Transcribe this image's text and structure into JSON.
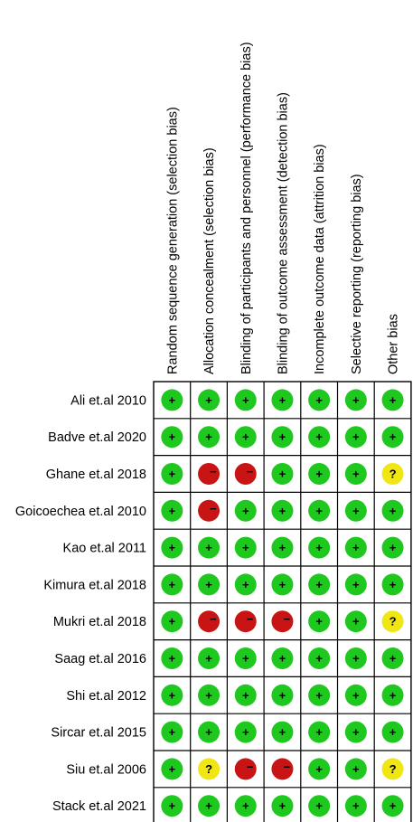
{
  "domains": [
    "Random sequence generation (selection bias)",
    "Allocation concealment (selection bias)",
    "Blinding of participants and personnel (performance bias)",
    "Blinding of outcome assessment (detection bias)",
    "Incomplete outcome data (attrition bias)",
    "Selective reporting (reporting bias)",
    "Other bias"
  ],
  "studies": [
    {
      "name": "Ali et.al 2010",
      "ratings": [
        "low",
        "low",
        "low",
        "low",
        "low",
        "low",
        "low"
      ]
    },
    {
      "name": "Badve et.al 2020",
      "ratings": [
        "low",
        "low",
        "low",
        "low",
        "low",
        "low",
        "low"
      ]
    },
    {
      "name": "Ghane et.al 2018",
      "ratings": [
        "low",
        "high",
        "high",
        "low",
        "low",
        "low",
        "unclear"
      ]
    },
    {
      "name": "Goicoechea et.al 2010",
      "ratings": [
        "low",
        "high",
        "low",
        "low",
        "low",
        "low",
        "low"
      ]
    },
    {
      "name": "Kao et.al 2011",
      "ratings": [
        "low",
        "low",
        "low",
        "low",
        "low",
        "low",
        "low"
      ]
    },
    {
      "name": "Kimura et.al 2018",
      "ratings": [
        "low",
        "low",
        "low",
        "low",
        "low",
        "low",
        "low"
      ]
    },
    {
      "name": "Mukri et.al 2018",
      "ratings": [
        "low",
        "high",
        "high",
        "high",
        "low",
        "low",
        "unclear"
      ]
    },
    {
      "name": "Saag et.al 2016",
      "ratings": [
        "low",
        "low",
        "low",
        "low",
        "low",
        "low",
        "low"
      ]
    },
    {
      "name": "Shi et.al 2012",
      "ratings": [
        "low",
        "low",
        "low",
        "low",
        "low",
        "low",
        "low"
      ]
    },
    {
      "name": "Sircar et.al 2015",
      "ratings": [
        "low",
        "low",
        "low",
        "low",
        "low",
        "low",
        "low"
      ]
    },
    {
      "name": "Siu et.al 2006",
      "ratings": [
        "low",
        "unclear",
        "high",
        "high",
        "low",
        "low",
        "unclear"
      ]
    },
    {
      "name": "Stack et.al 2021",
      "ratings": [
        "low",
        "low",
        "low",
        "low",
        "low",
        "low",
        "low"
      ]
    }
  ],
  "legend": {
    "low": {
      "symbol": "+",
      "color": "#1ec81e"
    },
    "high": {
      "symbol": "−",
      "color": "#c81414"
    },
    "unclear": {
      "symbol": "?",
      "color": "#f0e614"
    }
  }
}
